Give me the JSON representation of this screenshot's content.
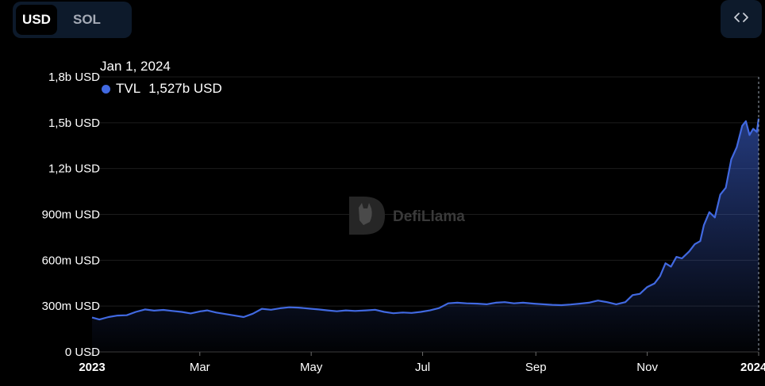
{
  "currency_toggle": {
    "options": [
      "USD",
      "SOL"
    ],
    "selected": "USD"
  },
  "embed_button": {
    "icon": "code-icon",
    "glyph": "< >"
  },
  "tooltip": {
    "date": "Jan 1, 2024",
    "series_name": "TVL",
    "value_text": "1,527b USD",
    "color": "#4169e1"
  },
  "watermark": {
    "text": "DefiLlama"
  },
  "colors": {
    "background": "#000000",
    "line": "#4169e1",
    "toggle_bg": "#0d1a2b"
  },
  "chart_data": {
    "type": "area",
    "title": "",
    "xlabel": "",
    "ylabel": "",
    "series": [
      {
        "name": "TVL",
        "points": [
          [
            "2023-01-01",
            225
          ],
          [
            "2023-01-05",
            212
          ],
          [
            "2023-01-10",
            228
          ],
          [
            "2023-01-15",
            238
          ],
          [
            "2023-01-20",
            240
          ],
          [
            "2023-01-25",
            262
          ],
          [
            "2023-01-30",
            278
          ],
          [
            "2023-02-04",
            270
          ],
          [
            "2023-02-09",
            275
          ],
          [
            "2023-02-14",
            268
          ],
          [
            "2023-02-19",
            262
          ],
          [
            "2023-02-24",
            252
          ],
          [
            "2023-03-01",
            265
          ],
          [
            "2023-03-05",
            272
          ],
          [
            "2023-03-10",
            258
          ],
          [
            "2023-03-15",
            248
          ],
          [
            "2023-03-20",
            238
          ],
          [
            "2023-03-25",
            228
          ],
          [
            "2023-03-30",
            250
          ],
          [
            "2023-04-04",
            282
          ],
          [
            "2023-04-09",
            276
          ],
          [
            "2023-04-14",
            286
          ],
          [
            "2023-04-19",
            292
          ],
          [
            "2023-04-24",
            290
          ],
          [
            "2023-04-30",
            283
          ],
          [
            "2023-05-05",
            278
          ],
          [
            "2023-05-10",
            272
          ],
          [
            "2023-05-15",
            266
          ],
          [
            "2023-05-20",
            272
          ],
          [
            "2023-05-25",
            268
          ],
          [
            "2023-05-31",
            272
          ],
          [
            "2023-06-05",
            276
          ],
          [
            "2023-06-10",
            262
          ],
          [
            "2023-06-15",
            253
          ],
          [
            "2023-06-20",
            258
          ],
          [
            "2023-06-25",
            255
          ],
          [
            "2023-06-30",
            262
          ],
          [
            "2023-07-05",
            272
          ],
          [
            "2023-07-10",
            287
          ],
          [
            "2023-07-15",
            318
          ],
          [
            "2023-07-20",
            322
          ],
          [
            "2023-07-25",
            318
          ],
          [
            "2023-07-31",
            316
          ],
          [
            "2023-08-05",
            312
          ],
          [
            "2023-08-10",
            322
          ],
          [
            "2023-08-15",
            326
          ],
          [
            "2023-08-20",
            318
          ],
          [
            "2023-08-25",
            322
          ],
          [
            "2023-08-31",
            316
          ],
          [
            "2023-09-05",
            312
          ],
          [
            "2023-09-10",
            308
          ],
          [
            "2023-09-15",
            306
          ],
          [
            "2023-09-20",
            310
          ],
          [
            "2023-09-25",
            316
          ],
          [
            "2023-09-30",
            322
          ],
          [
            "2023-10-05",
            336
          ],
          [
            "2023-10-10",
            326
          ],
          [
            "2023-10-15",
            312
          ],
          [
            "2023-10-20",
            326
          ],
          [
            "2023-10-24",
            372
          ],
          [
            "2023-10-28",
            380
          ],
          [
            "2023-11-01",
            425
          ],
          [
            "2023-11-05",
            448
          ],
          [
            "2023-11-08",
            495
          ],
          [
            "2023-11-11",
            580
          ],
          [
            "2023-11-14",
            558
          ],
          [
            "2023-11-17",
            622
          ],
          [
            "2023-11-20",
            612
          ],
          [
            "2023-11-24",
            658
          ],
          [
            "2023-11-27",
            705
          ],
          [
            "2023-11-30",
            725
          ],
          [
            "2023-12-02",
            830
          ],
          [
            "2023-12-05",
            915
          ],
          [
            "2023-12-08",
            880
          ],
          [
            "2023-12-11",
            1030
          ],
          [
            "2023-12-14",
            1075
          ],
          [
            "2023-12-17",
            1260
          ],
          [
            "2023-12-20",
            1340
          ],
          [
            "2023-12-23",
            1480
          ],
          [
            "2023-12-25",
            1510
          ],
          [
            "2023-12-27",
            1420
          ],
          [
            "2023-12-29",
            1460
          ],
          [
            "2023-12-31",
            1440
          ],
          [
            "2024-01-01",
            1527
          ]
        ]
      }
    ],
    "y_unit": "USD (millions)",
    "ylim": [
      0,
      1800
    ],
    "yticks": [
      {
        "value": 0,
        "label": "0 USD"
      },
      {
        "value": 300,
        "label": "300m USD"
      },
      {
        "value": 600,
        "label": "600m USD"
      },
      {
        "value": 900,
        "label": "900m USD"
      },
      {
        "value": 1200,
        "label": "1,2b USD"
      },
      {
        "value": 1500,
        "label": "1,5b USD"
      },
      {
        "value": 1800,
        "label": "1,8b USD"
      }
    ],
    "xlim": [
      "2023-01-01",
      "2024-01-01"
    ],
    "xticks": [
      {
        "date": "2023-01-01",
        "label": "2023",
        "bold": true
      },
      {
        "date": "2023-03-01",
        "label": "Mar",
        "bold": false
      },
      {
        "date": "2023-05-01",
        "label": "May",
        "bold": false
      },
      {
        "date": "2023-07-01",
        "label": "Jul",
        "bold": false
      },
      {
        "date": "2023-09-01",
        "label": "Sep",
        "bold": false
      },
      {
        "date": "2023-11-01",
        "label": "Nov",
        "bold": false
      },
      {
        "date": "2024-01-01",
        "label": "2024",
        "bold": true
      }
    ],
    "grid": true,
    "crosshair_date": "2024-01-01"
  }
}
